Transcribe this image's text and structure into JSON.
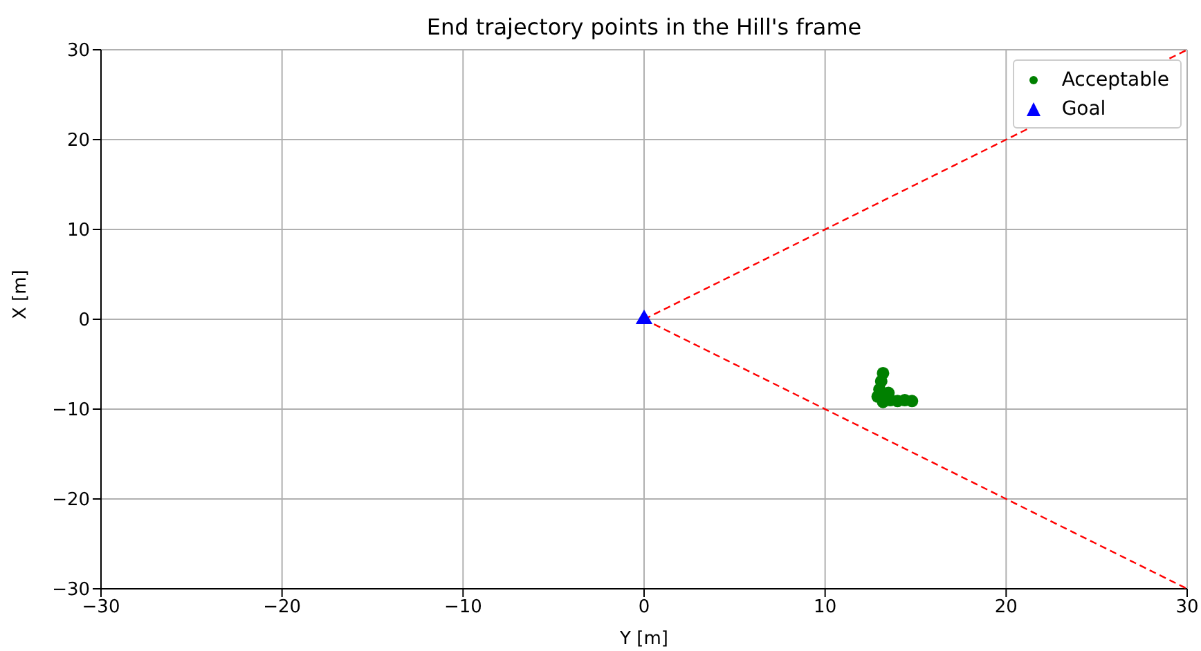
{
  "chart_data": {
    "type": "scatter",
    "title": "End trajectory points in the Hill's frame",
    "xlabel": "Y [m]",
    "ylabel": "X [m]",
    "xlim": [
      -30,
      30
    ],
    "xticks": [
      -30,
      -20,
      -10,
      0,
      10,
      20,
      30
    ],
    "ylim": [
      -30,
      30
    ],
    "yticks": [
      -30,
      -20,
      -10,
      0,
      10,
      20,
      30
    ],
    "grid": true,
    "legend": "top right",
    "series": [
      {
        "type": "line",
        "color": "#ff0000",
        "line_style": "dashed",
        "marker": "none",
        "x": [
          0,
          30
        ],
        "values": [
          0,
          30
        ]
      },
      {
        "type": "line",
        "color": "#ff0000",
        "line_style": "dashed",
        "marker": "none",
        "x": [
          0,
          30
        ],
        "values": [
          0,
          -30
        ]
      },
      {
        "name": "Acceptable",
        "color": "#008000",
        "marker": "circle",
        "x": [
          13.2,
          13.1,
          13.0,
          12.9,
          13.5,
          13.2,
          13.6,
          14.0,
          14.4,
          14.8
        ],
        "values": [
          -6.0,
          -6.9,
          -7.8,
          -8.6,
          -8.2,
          -9.2,
          -9.0,
          -9.1,
          -9.0,
          -9.1
        ]
      },
      {
        "name": "Goal",
        "color": "#0000ff",
        "marker": "triangle",
        "x": [
          0
        ],
        "values": [
          0
        ]
      }
    ]
  }
}
